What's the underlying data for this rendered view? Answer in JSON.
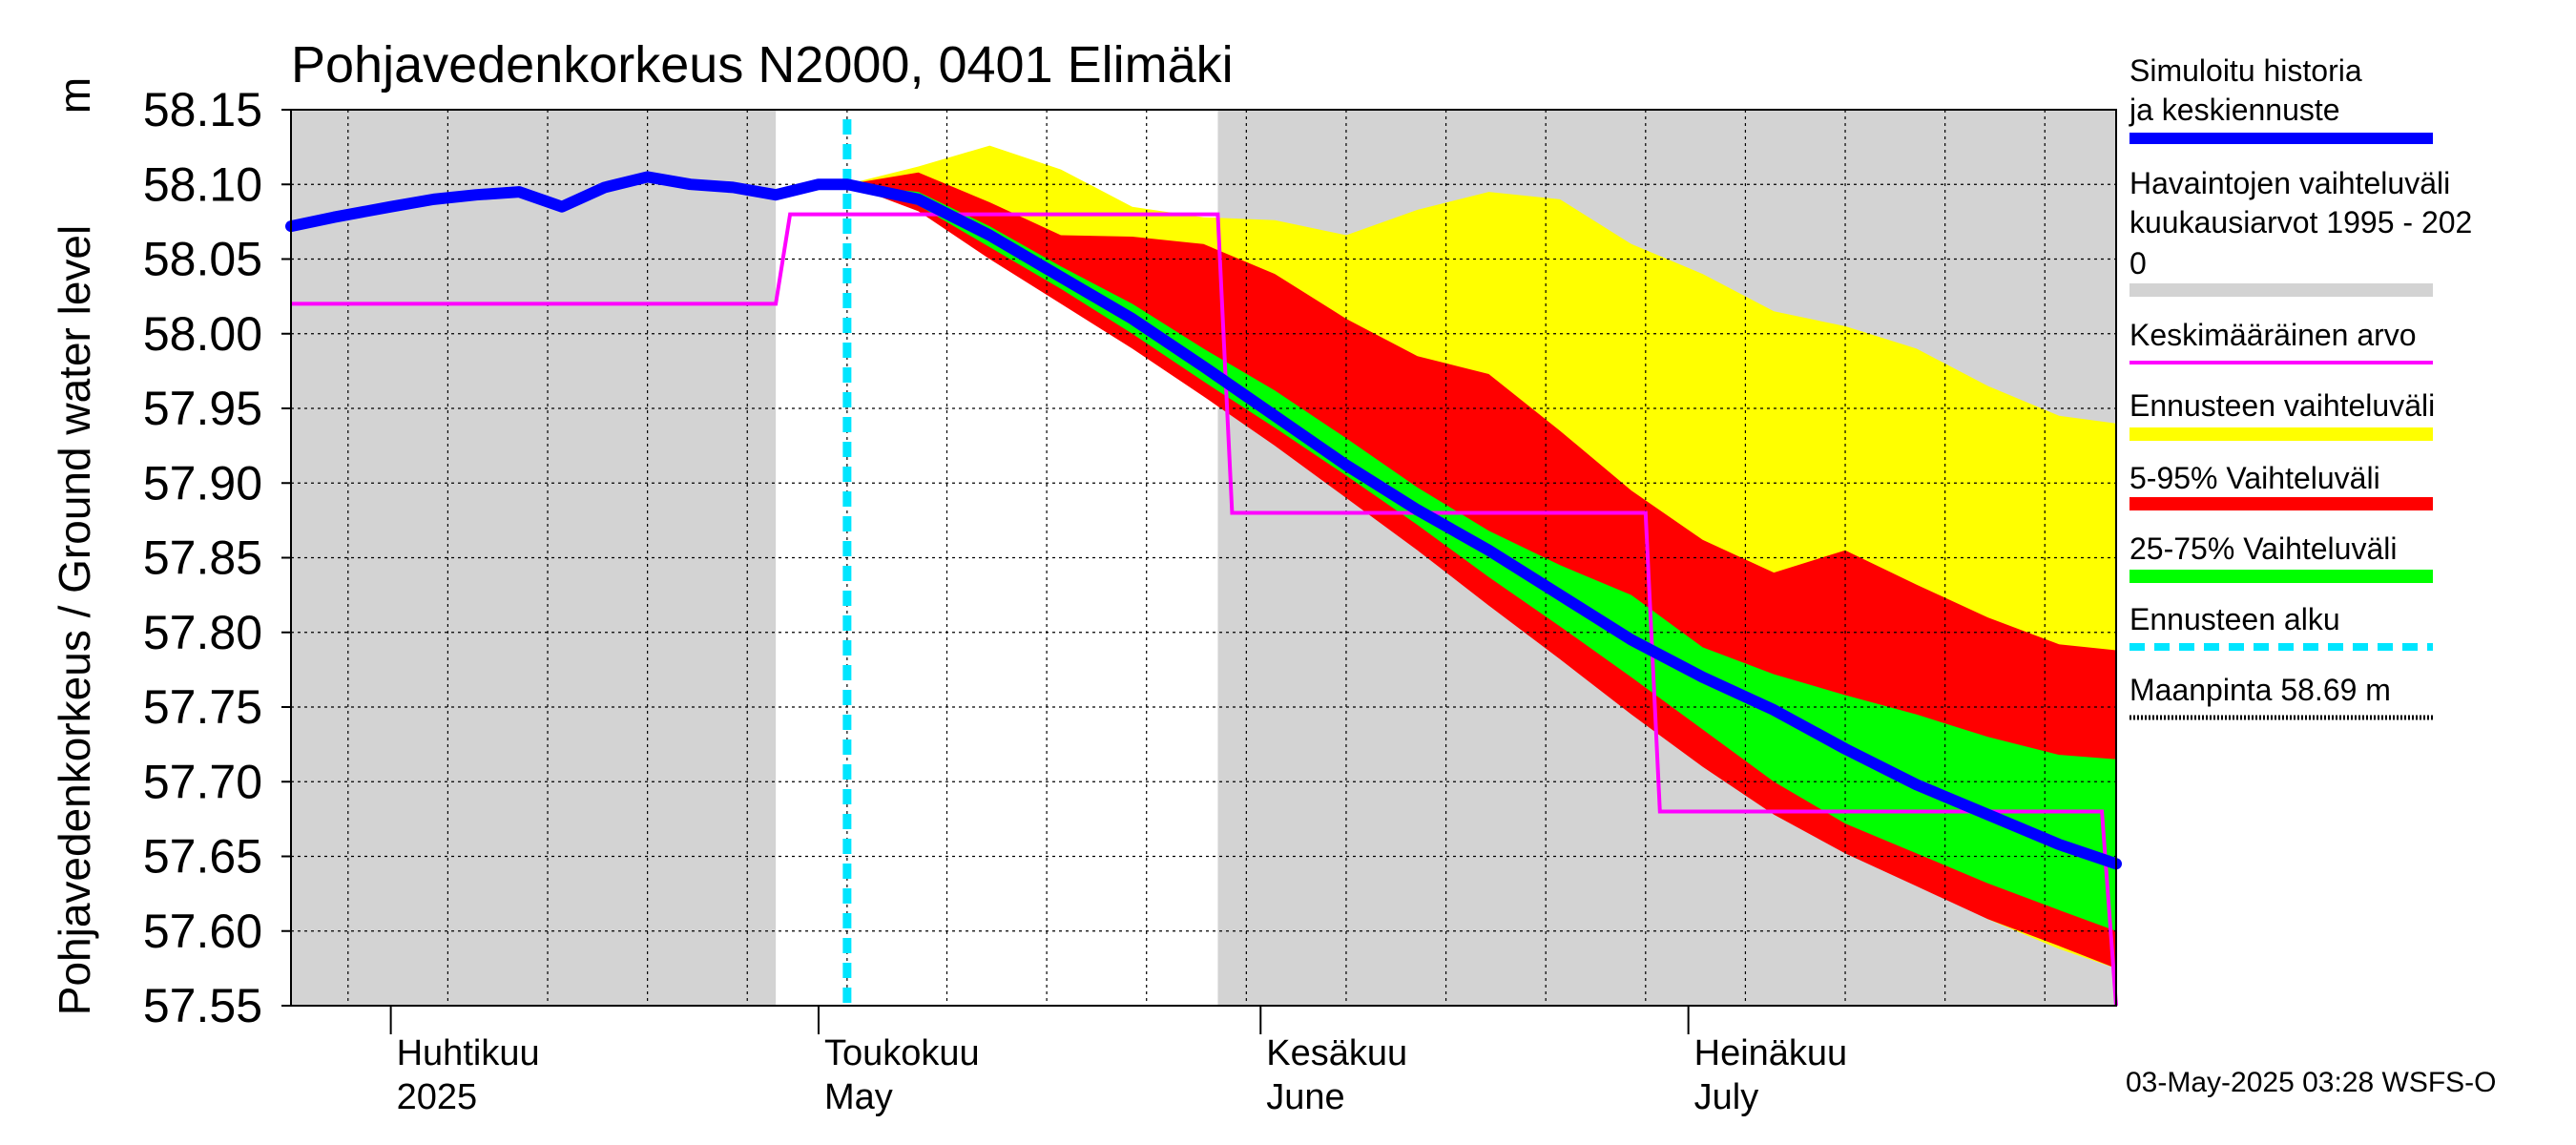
{
  "chart_data": {
    "type": "area",
    "title": "Pohjavedenkorkeus N2000, 0401 Elimäki",
    "ylabel": "Pohjavedenkorkeus / Ground water level",
    "ylabel_unit": "m",
    "ylim": [
      57.55,
      58.15
    ],
    "yticks": [
      "58.15",
      "58.10",
      "58.05",
      "58.00",
      "57.95",
      "57.90",
      "57.85",
      "57.80",
      "57.75",
      "57.70",
      "57.65",
      "57.60",
      "57.55"
    ],
    "xlim": [
      "2025-03-25",
      "2025-07-31"
    ],
    "x_labels": [
      {
        "date": "2025-04-01",
        "line1": "Huhtikuu",
        "line2": "2025"
      },
      {
        "date": "2025-05-01",
        "line1": "Toukokuu",
        "line2": "May"
      },
      {
        "date": "2025-06-01",
        "line1": "Kesäkuu",
        "line2": "June"
      },
      {
        "date": "2025-07-01",
        "line1": "Heinäkuu",
        "line2": "July"
      }
    ],
    "grid": true,
    "forecast_start": "2025-05-03",
    "observed_range_periods": [
      [
        "2025-03-25",
        "2025-04-28"
      ],
      [
        "2025-05-29",
        "2025-07-31"
      ]
    ],
    "series": [
      {
        "name": "Ennusteen vaihteluväli",
        "role": "forecast_range",
        "color": "#FFFF00",
        "x": [
          "2025-05-03",
          "2025-05-08",
          "2025-05-13",
          "2025-05-18",
          "2025-05-23",
          "2025-05-28",
          "2025-06-02",
          "2025-06-07",
          "2025-06-12",
          "2025-06-17",
          "2025-06-22",
          "2025-06-27",
          "2025-07-02",
          "2025-07-07",
          "2025-07-12",
          "2025-07-17",
          "2025-07-22",
          "2025-07-27",
          "2025-07-31"
        ],
        "upper": [
          58.1,
          58.112,
          58.126,
          58.11,
          58.085,
          58.078,
          58.076,
          58.066,
          58.083,
          58.095,
          58.09,
          58.06,
          58.04,
          58.015,
          58.005,
          57.99,
          57.965,
          57.945,
          57.94
        ],
        "lower": [
          58.1,
          58.085,
          58.055,
          58.025,
          57.995,
          57.965,
          57.932,
          57.898,
          57.862,
          57.826,
          57.786,
          57.748,
          57.715,
          57.682,
          57.657,
          57.632,
          57.608,
          57.588,
          57.575
        ]
      },
      {
        "name": "5-95% Vaihteluväli",
        "role": "p5_p95",
        "color": "#FF0000",
        "x": [
          "2025-05-03",
          "2025-05-08",
          "2025-05-13",
          "2025-05-18",
          "2025-05-23",
          "2025-05-28",
          "2025-06-02",
          "2025-06-07",
          "2025-06-12",
          "2025-06-17",
          "2025-06-22",
          "2025-06-27",
          "2025-07-02",
          "2025-07-07",
          "2025-07-12",
          "2025-07-17",
          "2025-07-22",
          "2025-07-27",
          "2025-07-31"
        ],
        "upper": [
          58.1,
          58.108,
          58.088,
          58.066,
          58.065,
          58.06,
          58.04,
          58.01,
          57.985,
          57.973,
          57.935,
          57.895,
          57.862,
          57.84,
          57.855,
          57.832,
          57.81,
          57.792,
          57.788
        ],
        "lower": [
          58.1,
          58.082,
          58.05,
          58.02,
          57.99,
          57.958,
          57.925,
          57.89,
          57.855,
          57.818,
          57.782,
          57.745,
          57.71,
          57.678,
          57.652,
          57.63,
          57.608,
          57.59,
          57.575
        ]
      },
      {
        "name": "25-75% Vaihteluväli",
        "role": "p25_p75",
        "color": "#00FF00",
        "x": [
          "2025-05-03",
          "2025-05-08",
          "2025-05-13",
          "2025-05-18",
          "2025-05-23",
          "2025-05-28",
          "2025-06-02",
          "2025-06-07",
          "2025-06-12",
          "2025-06-17",
          "2025-06-22",
          "2025-06-27",
          "2025-07-02",
          "2025-07-07",
          "2025-07-12",
          "2025-07-17",
          "2025-07-22",
          "2025-07-27",
          "2025-07-31"
        ],
        "upper": [
          58.1,
          58.095,
          58.072,
          58.045,
          58.02,
          57.99,
          57.962,
          57.93,
          57.897,
          57.868,
          57.845,
          57.825,
          57.79,
          57.772,
          57.758,
          57.745,
          57.73,
          57.718,
          57.715
        ],
        "lower": [
          58.1,
          58.086,
          58.058,
          58.03,
          58.0,
          57.968,
          57.937,
          57.905,
          57.872,
          57.837,
          57.804,
          57.77,
          57.735,
          57.7,
          57.672,
          57.652,
          57.632,
          57.614,
          57.6
        ]
      },
      {
        "name": "Simuloitu historia ja keskiennuste",
        "role": "median",
        "color": "#0000FF",
        "x": [
          "2025-03-25",
          "2025-03-28",
          "2025-04-01",
          "2025-04-04",
          "2025-04-07",
          "2025-04-10",
          "2025-04-13",
          "2025-04-16",
          "2025-04-19",
          "2025-04-22",
          "2025-04-25",
          "2025-04-28",
          "2025-05-01",
          "2025-05-03",
          "2025-05-08",
          "2025-05-13",
          "2025-05-18",
          "2025-05-23",
          "2025-05-28",
          "2025-06-02",
          "2025-06-07",
          "2025-06-12",
          "2025-06-17",
          "2025-06-22",
          "2025-06-27",
          "2025-07-02",
          "2025-07-07",
          "2025-07-12",
          "2025-07-17",
          "2025-07-22",
          "2025-07-27",
          "2025-07-31"
        ],
        "y": [
          58.072,
          58.078,
          58.085,
          58.09,
          58.093,
          58.095,
          58.085,
          58.098,
          58.105,
          58.1,
          58.098,
          58.093,
          58.1,
          58.1,
          58.09,
          58.066,
          58.038,
          58.01,
          57.978,
          57.945,
          57.912,
          57.882,
          57.855,
          57.825,
          57.795,
          57.77,
          57.748,
          57.722,
          57.698,
          57.678,
          57.658,
          57.645
        ]
      },
      {
        "name": "Keskimääräinen arvo",
        "role": "monthly_mean",
        "color": "#FF00FF",
        "x": [
          "2025-03-25",
          "2025-04-28",
          "2025-04-29",
          "2025-05-29",
          "2025-05-30",
          "2025-06-28",
          "2025-06-29",
          "2025-07-30",
          "2025-07-31"
        ],
        "y": [
          58.02,
          58.02,
          58.08,
          58.08,
          57.88,
          57.88,
          57.68,
          57.68,
          57.55
        ]
      }
    ]
  },
  "legend": [
    {
      "label": "Simuloitu historia ja keskiennuste",
      "color": "#0000FF",
      "style": "thick"
    },
    {
      "label": "Havaintojen vaihteluväli  kuukausiarvot 1995 - 2020",
      "color": "#D3D3D3",
      "style": "band"
    },
    {
      "label": "Keskimääräinen arvo",
      "color": "#FF00FF",
      "style": "line"
    },
    {
      "label": "Ennusteen vaihteluväli",
      "color": "#FFFF00",
      "style": "band"
    },
    {
      "label": "5-95% Vaihteluväli",
      "color": "#FF0000",
      "style": "band"
    },
    {
      "label": "25-75% Vaihteluväli",
      "color": "#00FF00",
      "style": "band"
    },
    {
      "label": "Ennusteen alku",
      "color": "#00E5FF",
      "style": "dashed"
    },
    {
      "label": "Maanpinta 58.69 m",
      "color": "#000000",
      "style": "dotted"
    }
  ],
  "footer": "03-May-2025 03:28 WSFS-O"
}
